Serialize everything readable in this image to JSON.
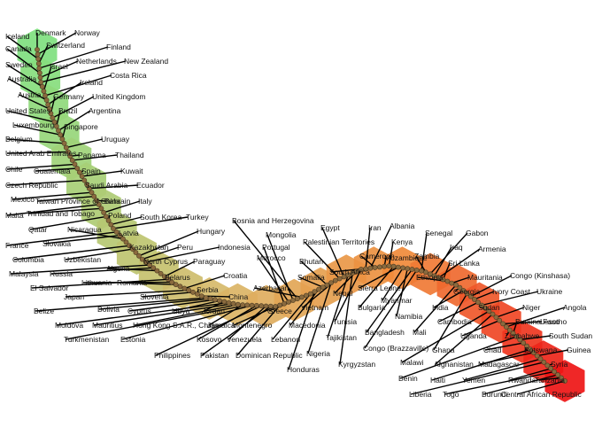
{
  "chart_data": {
    "type": "scatter",
    "title": "",
    "xlabel": "",
    "ylabel": "",
    "grid": false,
    "legend": "none",
    "description": "",
    "colors": {
      "start": "#7fe07f",
      "middle": "#d8b96a",
      "late": "#f08a3a",
      "end": "#ee1515",
      "node": "#8a6a3e",
      "leader": "#000000"
    },
    "countries": [
      "Denmark",
      "Norway",
      "Iceland",
      "Switzerland",
      "Finland",
      "Canada",
      "Netherlands",
      "New Zealand",
      "Sweden",
      "Israel",
      "Costa Rica",
      "Australia",
      "Ireland",
      "Austria",
      "Germany",
      "United Kingdom",
      "United States",
      "Brazil",
      "Argentina",
      "Luxembourg",
      "Singapore",
      "Belgium",
      "Uruguay",
      "United Arab Emirates",
      "Panama",
      "Thailand",
      "Chile",
      "Guatemala",
      "Spain",
      "Kuwait",
      "Czech Republic",
      "Saudi Arabia",
      "Ecuador",
      "Mexico",
      "Taiwan Province of China",
      "Bahrain",
      "Malta",
      "Trinidad and Tobago",
      "Italy",
      "Qatar",
      "Poland",
      "South Korea",
      "Turkey",
      "France",
      "Slovakia",
      "Nicaragua",
      "Latvia",
      "Colombia",
      "Uzbekistan",
      "Kazakhstan",
      "Hungary",
      "Peru",
      "Indonesia",
      "Malaysia",
      "Russia",
      "Algeria",
      "North Cyprus",
      "Paraguay",
      "El Salvador",
      "Lithuania",
      "Romania",
      "Belarus",
      "Croatia",
      "Japan",
      "Slovenia",
      "Serbia",
      "China",
      "Belize",
      "Bolivia",
      "Cyprus",
      "Libya",
      "Jordan",
      "Moldova",
      "Mauritius",
      "Hong Kong S.A.R., China",
      "Jamaica",
      "Turkmenistan",
      "Estonia",
      "Kosovo",
      "Philippines",
      "Venezuela",
      "Pakistan",
      "Montenegro",
      "Dominican Republic",
      "Portugal",
      "Morocco",
      "Mongolia",
      "Bosnia and Herzegovina",
      "Azerbaijan",
      "Greece",
      "Lebanon",
      "Honduras",
      "Macedonia",
      "Somalia",
      "Bhutan",
      "Nigeria",
      "Vietnam",
      "Palestinian Territories",
      "Egypt",
      "Tajikistan",
      "Kyrgyzstan",
      "Nepal",
      "Tunisia",
      "Iran",
      "Albania",
      "Cameroon",
      "South Africa",
      "Mozambique",
      "Kenya",
      "Bulgaria",
      "Sierra Leone",
      "Myanmar",
      "Namibia",
      "Bangladesh",
      "Congo (Brazzaville)",
      "Senegal",
      "Zambia",
      "Gabon",
      "Iraq",
      "Armenia",
      "Sri Lanka",
      "Ethiopia",
      "Mauritania",
      "Mali",
      "Georgia",
      "India",
      "Ghana",
      "Congo (Kinshasa)",
      "Ivory Coast",
      "Cambodia",
      "Ukraine",
      "Sudan",
      "Malawi",
      "Afghanistan",
      "Niger",
      "Uganda",
      "Lesotho",
      "Angola",
      "Zimbabwe",
      "Burkina Faso",
      "Benin",
      "South Sudan",
      "Chad",
      "Botswana",
      "Haiti",
      "Madagascar",
      "Guinea",
      "Yemen",
      "Liberia",
      "Syria",
      "Rwanda",
      "Togo",
      "Burundi",
      "Tanzania",
      "Central African Republic"
    ]
  }
}
